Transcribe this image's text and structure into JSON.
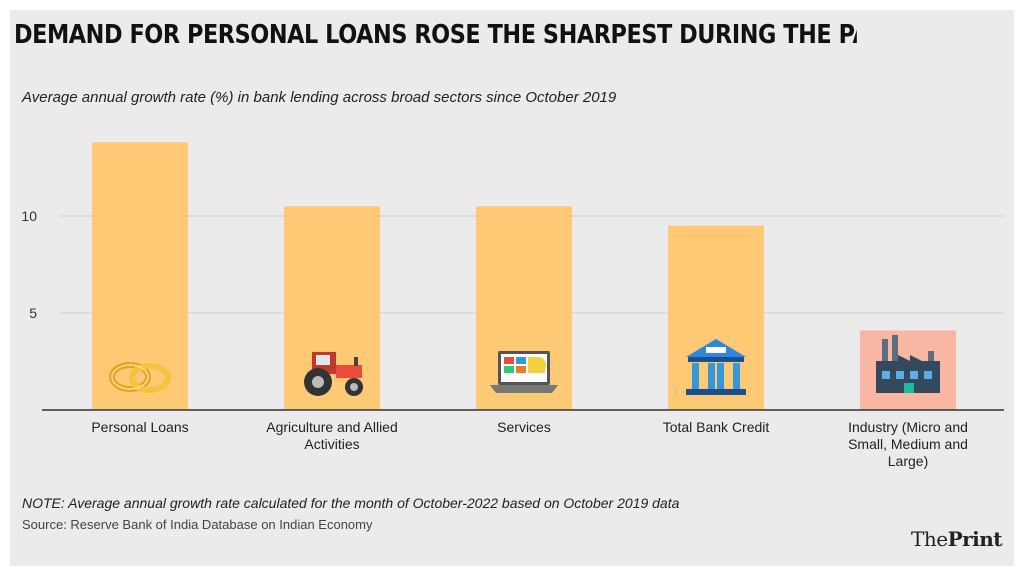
{
  "chart_data": {
    "type": "bar",
    "title": "DEMAND FOR PERSONAL LOANS ROSE THE SHARPEST DURING THE PANDEMIC",
    "subtitle": "Average annual growth rate (%) in bank lending across broad sectors since October 2019",
    "categories": [
      "Personal Loans",
      "Agriculture and Allied Activities",
      "Services",
      "Total Bank Credit",
      "Industry (Micro and Small, Medium and Large)"
    ],
    "values": [
      13.8,
      10.5,
      10.5,
      9.5,
      4.1
    ],
    "icons": [
      "rings-icon",
      "tractor-icon",
      "laptop-icon",
      "bank-icon",
      "factory-icon"
    ],
    "xlabel": "",
    "ylabel": "",
    "ylim": [
      0,
      14.5
    ],
    "yticks": [
      5,
      10
    ],
    "grid": true
  },
  "footer": {
    "note": "NOTE: Average annual growth rate calculated for the month of October-2022 based on October 2019 data",
    "source": "Source: Reserve Bank of India Database on Indian Economy"
  },
  "brand": {
    "prefix": "The",
    "name": "Print"
  },
  "colors": {
    "bar": "#fec974",
    "highlight_bar": "#f8b7a3",
    "background": "#ebebeb",
    "grid": "#cccccc",
    "axis": "#333333"
  }
}
